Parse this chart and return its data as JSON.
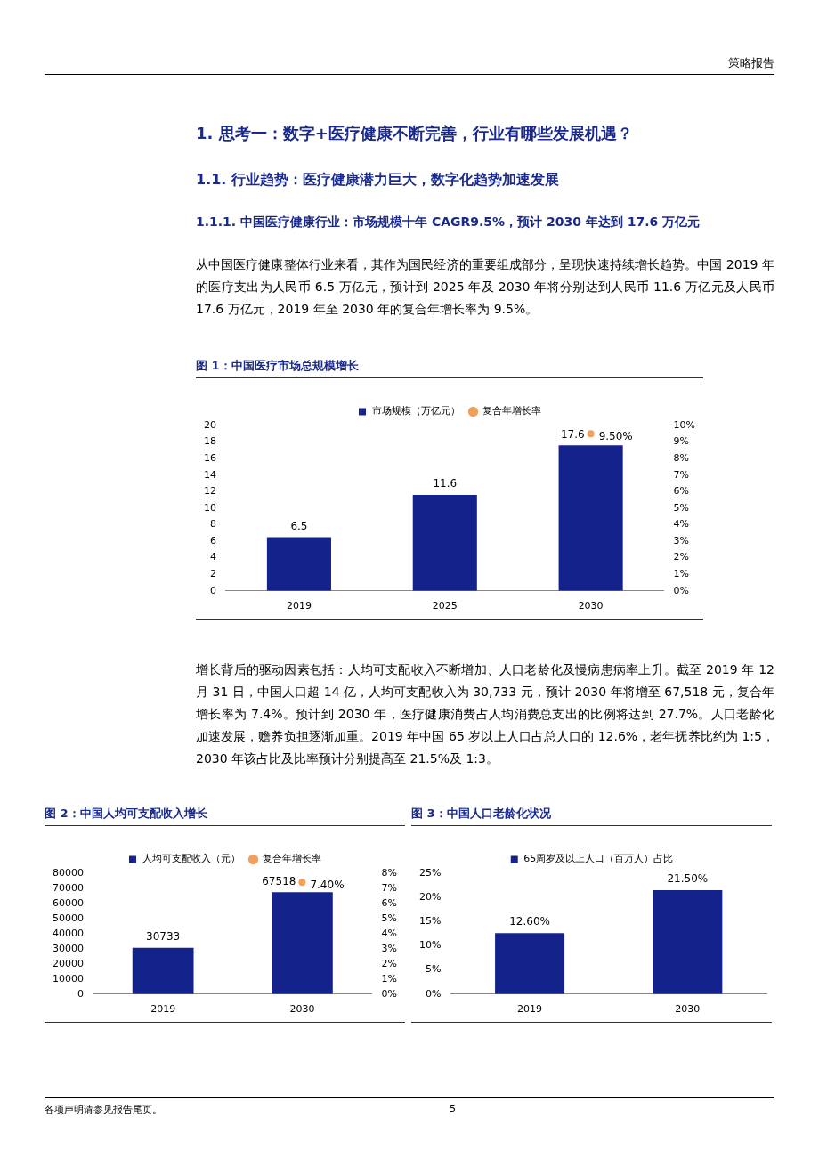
{
  "chart_data": [
    {
      "type": "bar",
      "title": "图 1：中国医疗市场总规模增长",
      "categories": [
        "2019",
        "2025",
        "2030"
      ],
      "legend": "top",
      "marker": "circle",
      "ylim": [
        0,
        20
      ],
      "yticks": [
        0,
        2,
        4,
        6,
        8,
        10,
        12,
        14,
        16,
        18,
        20
      ],
      "y2lim": [
        0,
        10
      ],
      "y2ticks": [
        {
          "value": 0,
          "label": "0%"
        },
        {
          "value": 1,
          "label": "1%"
        },
        {
          "value": 2,
          "label": "2%"
        },
        {
          "value": 3,
          "label": "3%"
        },
        {
          "value": 4,
          "label": "4%"
        },
        {
          "value": 5,
          "label": "5%"
        },
        {
          "value": 6,
          "label": "6%"
        },
        {
          "value": 7,
          "label": "7%"
        },
        {
          "value": 8,
          "label": "8%"
        },
        {
          "value": 9,
          "label": "9%"
        },
        {
          "value": 10,
          "label": "10%"
        }
      ],
      "series": [
        {
          "name": "市场规模（万亿元）",
          "color": "#14238c",
          "values": [
            6.5,
            11.6,
            17.6
          ],
          "value_labels": [
            "6.5",
            "11.6",
            "17.6"
          ]
        },
        {
          "name": "复合年增长率",
          "type": "line",
          "axis": "y2",
          "color": "#f0a05a",
          "values": [
            null,
            null,
            9.5
          ],
          "value_labels": [
            null,
            null,
            "9.50%"
          ]
        }
      ],
      "annotations": [
        "策略报告",
        "1. 思考一：数字+医疗健康不断完善，行业有哪些发展机遇？",
        "1.1. 行业趋势：医疗健康潜力巨大，数字化趋势加速发展",
        "1.1.1. 中国医疗健康行业：市场规模十年 CAGR9.5%，预计 2030 年达到 17.6 万亿元",
        "从中国医疗健康整体行业来看，其作为国民经济的重要组成部分，呈现快速持续增长趋势。中国 2019 年的医疗支出为人民币 6.5 万亿元，预计到 2025 年及 2030 年将分别达到人民币 11.6 万亿元及人民币 17.6 万亿元，2019 年至 2030 年的复合年增长率为 9.5%。"
      ]
    },
    {
      "type": "bar",
      "title": "图 2：中国人均可支配收入增长",
      "categories": [
        "2019",
        "2030"
      ],
      "legend": "top",
      "marker": "circle",
      "ylim": [
        0,
        80000
      ],
      "yticks": [
        0,
        10000,
        20000,
        30000,
        40000,
        50000,
        60000,
        70000,
        80000
      ],
      "y2lim": [
        0,
        8
      ],
      "y2ticks": [
        {
          "value": 0,
          "label": "0%"
        },
        {
          "value": 1,
          "label": "1%"
        },
        {
          "value": 2,
          "label": "2%"
        },
        {
          "value": 3,
          "label": "3%"
        },
        {
          "value": 4,
          "label": "4%"
        },
        {
          "value": 5,
          "label": "5%"
        },
        {
          "value": 6,
          "label": "6%"
        },
        {
          "value": 7,
          "label": "7%"
        },
        {
          "value": 8,
          "label": "8%"
        }
      ],
      "series": [
        {
          "name": "人均可支配收入（元）",
          "color": "#14238c",
          "values": [
            30733,
            67518
          ],
          "value_labels": [
            "30733",
            "67518"
          ]
        },
        {
          "name": "复合年增长率",
          "type": "line",
          "axis": "y2",
          "color": "#f0a05a",
          "values": [
            null,
            7.4
          ],
          "value_labels": [
            null,
            "7.40%"
          ]
        }
      ],
      "annotations": [
        "增长背后的驱动因素包括：人均可支配收入不断增加、人口老龄化及慢病患病率上升。截至 2019 年 12 月 31 日，中国人口超 14 亿，人均可支配收入为 30,733 元，预计 2030 年将增至 67,518 元，复合年增长率为 7.4%。预计到 2030 年，医疗健康消费占人均消费总支出的比例将达到 27.7%。人口老龄化加速发展，赡养负担逐渐加重。2019 年中国 65 岁以上人口占总人口的 12.6%，老年抚养比约为 1:5，2030 年该占比及比率预计分别提高至 21.5%及 1:3。"
      ]
    },
    {
      "type": "bar",
      "title": "图 3：中国人口老龄化状况",
      "categories": [
        "2019",
        "2030"
      ],
      "legend": "top",
      "ylim": [
        0,
        25
      ],
      "yticks": [
        {
          "value": 0,
          "label": "0%"
        },
        {
          "value": 5,
          "label": "5%"
        },
        {
          "value": 10,
          "label": "10%"
        },
        {
          "value": 15,
          "label": "15%"
        },
        {
          "value": 20,
          "label": "20%"
        },
        {
          "value": 25,
          "label": "25%"
        }
      ],
      "series": [
        {
          "name": "65周岁及以上人口（百万人）占比",
          "color": "#14238c",
          "values": [
            12.6,
            21.5
          ],
          "value_labels": [
            "12.60%",
            "21.50%"
          ]
        }
      ],
      "annotations": [
        "5",
        "各项声明请参见报告尾页。"
      ]
    }
  ]
}
